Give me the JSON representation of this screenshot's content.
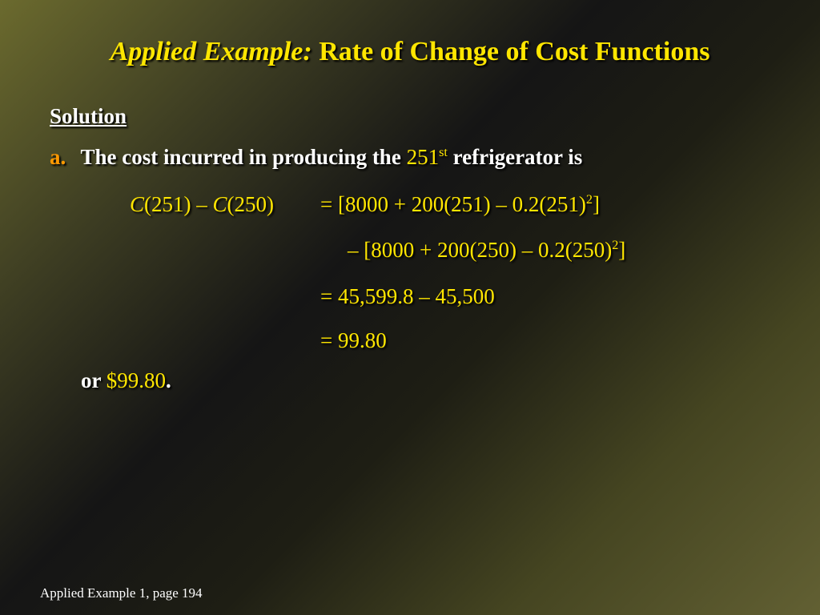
{
  "slide": {
    "title_italic": "Applied Example:",
    "title_rest": "Rate of Change of Cost Functions",
    "solution_heading": "Solution",
    "part_a": {
      "marker": "a.",
      "text_before": "The cost incurred in producing the",
      "ordinal_number": "251",
      "ordinal_suffix": "st",
      "text_after": "refrigerator is"
    },
    "equation": {
      "lhs": {
        "fn1": "C",
        "arg1": "(251) – ",
        "fn2": "C",
        "arg2": "(250)"
      },
      "line1": {
        "text": "= [8000 + 200(251) – 0.2(251)",
        "exp": "2",
        "close": "]"
      },
      "line2": {
        "text": "– [8000 + 200(250) – 0.2(250)",
        "exp": "2",
        "close": "]"
      },
      "line3": "= 45,599.8 – 45,500",
      "line4": "= 99.80"
    },
    "conclusion": {
      "prefix": "or",
      "value": "$99.80",
      "suffix": "."
    },
    "footer": "Applied Example 1, page 194"
  },
  "colors": {
    "title": "#ffe600",
    "math": "#ffe600",
    "marker": "#ff9900",
    "body_text": "#ffffff"
  }
}
